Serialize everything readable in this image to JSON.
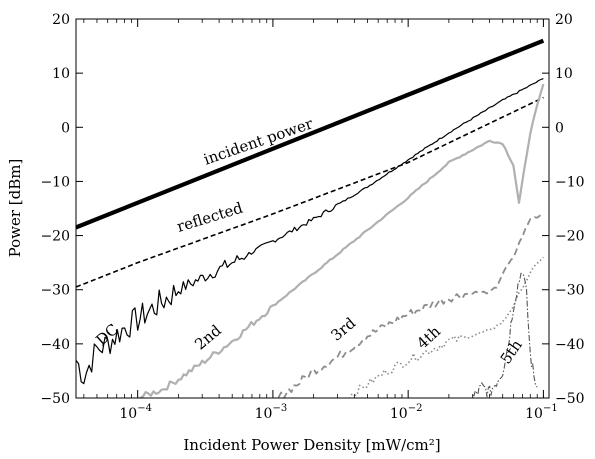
{
  "chart_data": {
    "type": "line",
    "title": "",
    "xlabel": "Incident Power Density [mW/cm²]",
    "ylabel": "Power [dBm]",
    "x_scale": "log",
    "xlim": [
      3.5e-05,
      0.11
    ],
    "ylim": [
      -50,
      20
    ],
    "x_ticks": [
      {
        "value": 0.0001,
        "base": "10",
        "exp": "−4"
      },
      {
        "value": 0.001,
        "base": "10",
        "exp": "−3"
      },
      {
        "value": 0.01,
        "base": "10",
        "exp": "−2"
      },
      {
        "value": 0.1,
        "base": "10",
        "exp": "−1"
      }
    ],
    "y_ticks": [
      20,
      10,
      0,
      -10,
      -20,
      -30,
      -40,
      -50
    ],
    "y_tick_labels": [
      "20",
      "10",
      "0",
      "−10",
      "−20",
      "−30",
      "−40",
      "−50"
    ],
    "grid": false,
    "legend": "none",
    "series": [
      {
        "key": "incident",
        "style": "thick-solid",
        "color": "#000000",
        "x": [
          3.5e-05,
          0.1
        ],
        "y": [
          -18.5,
          16
        ]
      },
      {
        "key": "reflected",
        "style": "dashed",
        "color": "#000000",
        "x": [
          3.5e-05,
          0.0001,
          0.001,
          0.01,
          0.1
        ],
        "y": [
          -29.5,
          -25,
          -16,
          -6.5,
          5.5
        ]
      },
      {
        "key": "dc",
        "style": "thin-solid",
        "color": "#000000",
        "x": [
          3.5e-05,
          4e-05,
          5e-05,
          6e-05,
          8e-05,
          0.0001,
          0.0002,
          0.0005,
          0.001,
          0.002,
          0.005,
          0.01,
          0.02,
          0.05,
          0.1
        ],
        "y": [
          -43,
          -46,
          -41,
          -40,
          -37,
          -35.5,
          -30,
          -25,
          -21,
          -17,
          -11,
          -6,
          -1,
          5,
          9
        ]
      },
      {
        "key": "second",
        "style": "gray-solid",
        "color": "#b0b0b0",
        "x": [
          0.0001,
          0.00015,
          0.0002,
          0.0003,
          0.0005,
          0.001,
          0.002,
          0.005,
          0.01,
          0.02,
          0.04,
          0.05,
          0.06,
          0.066,
          0.072,
          0.08,
          0.09,
          0.1
        ],
        "y": [
          -50,
          -48.5,
          -46.5,
          -43.5,
          -39.5,
          -33,
          -27,
          -19,
          -13,
          -6.5,
          -2.5,
          -3,
          -7,
          -14,
          -8,
          -1,
          4,
          8
        ]
      },
      {
        "key": "third",
        "style": "gray-dashed",
        "color": "#8c8c8c",
        "x": [
          0.0011,
          0.0015,
          0.002,
          0.003,
          0.005,
          0.01,
          0.02,
          0.03,
          0.04,
          0.045,
          0.05,
          0.06,
          0.07,
          0.08,
          0.09,
          0.1
        ],
        "y": [
          -50,
          -47.5,
          -45,
          -42.5,
          -38.5,
          -34.5,
          -31.5,
          -30.5,
          -30.5,
          -29.5,
          -27,
          -24,
          -20,
          -17,
          -16.5,
          -16
        ]
      },
      {
        "key": "fourth",
        "style": "gray-dotted",
        "color": "#8c8c8c",
        "x": [
          0.0035,
          0.005,
          0.007,
          0.01,
          0.015,
          0.02,
          0.03,
          0.04,
          0.05,
          0.06,
          0.07,
          0.08,
          0.09,
          0.1
        ],
        "y": [
          -50,
          -47.5,
          -45,
          -43,
          -41,
          -39.5,
          -38.5,
          -37.5,
          -36,
          -33,
          -29.5,
          -27,
          -25,
          -24
        ]
      },
      {
        "key": "fifth",
        "style": "dash-dot",
        "color": "#555555",
        "x": [
          0.03,
          0.035,
          0.04,
          0.045,
          0.05,
          0.055,
          0.06,
          0.065,
          0.07,
          0.075,
          0.08,
          0.085,
          0.09
        ],
        "y": [
          -50,
          -48,
          -49,
          -47,
          -45,
          -40,
          -33,
          -29,
          -26,
          -31,
          -42,
          -46,
          -48
        ]
      }
    ],
    "annotations": [
      {
        "text": "incident power",
        "x": 0.0008,
        "y": -3.5,
        "angle": -19
      },
      {
        "text": "reflected",
        "x": 0.00035,
        "y": -17.5,
        "angle": -17
      },
      {
        "text": "DC",
        "x": 6.3e-05,
        "y": -39,
        "angle": -42
      },
      {
        "text": "2nd",
        "x": 0.00035,
        "y": -39.5,
        "angle": -40
      },
      {
        "text": "3rd",
        "x": 0.0035,
        "y": -38,
        "angle": -40
      },
      {
        "text": "4th",
        "x": 0.015,
        "y": -39.5,
        "angle": -42
      },
      {
        "text": "5th",
        "x": 0.062,
        "y": -42,
        "angle": -55
      }
    ]
  }
}
